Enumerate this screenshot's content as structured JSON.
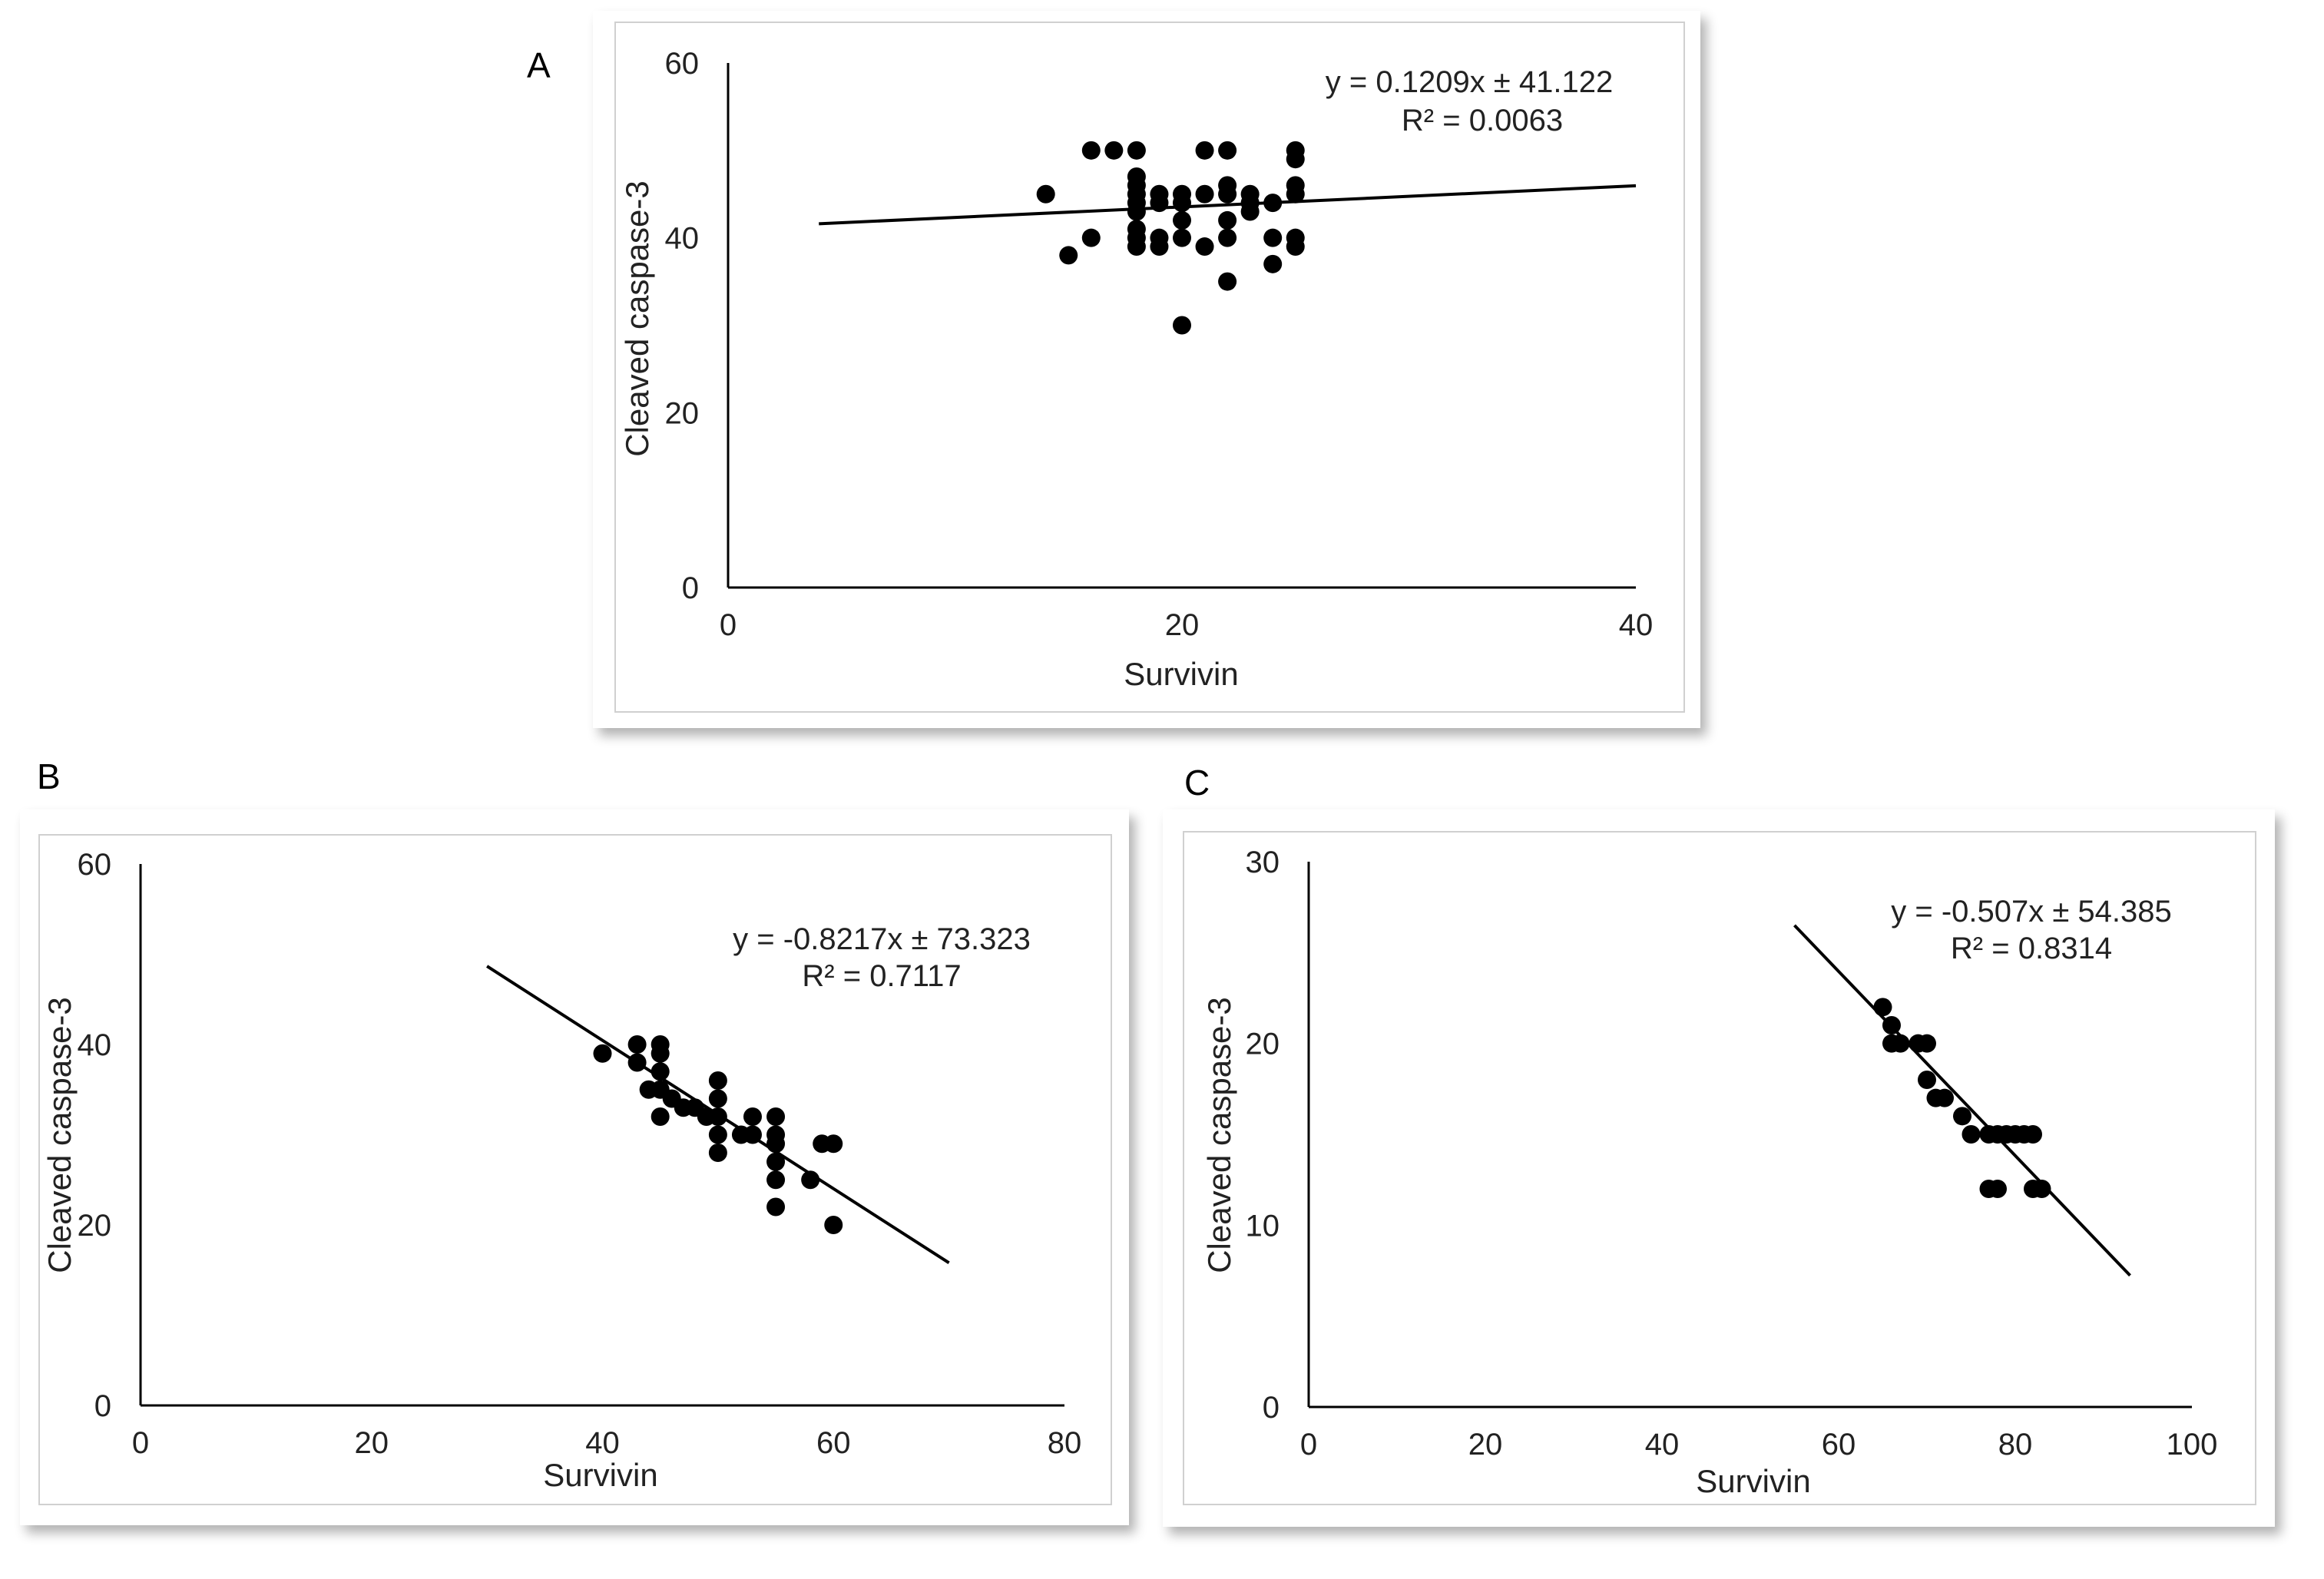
{
  "panel_labels": {
    "a": "A",
    "b": "B",
    "c": "C"
  },
  "colors": {
    "points": "#000000",
    "axis": "#000000",
    "trendline": "#000000",
    "text": "#222222"
  },
  "chart_data": [
    {
      "id": "A",
      "type": "scatter",
      "xlabel": "Survivin",
      "ylabel": "Cleaved caspase-3",
      "xlim": [
        0,
        40
      ],
      "ylim": [
        0,
        60
      ],
      "xticks": [
        "0",
        "20",
        "40"
      ],
      "yticks": [
        "0",
        "20",
        "40",
        "60"
      ],
      "equation": "y = 0.1209x ± 41.122",
      "r2": "R² = 0.0063",
      "trendline": {
        "slope": 0.1209,
        "intercept": 41.122,
        "x_range": [
          4,
          40
        ]
      },
      "points": [
        [
          14,
          45
        ],
        [
          15,
          38
        ],
        [
          16,
          40
        ],
        [
          16,
          50
        ],
        [
          17,
          50
        ],
        [
          18,
          50
        ],
        [
          18,
          47
        ],
        [
          18,
          46
        ],
        [
          18,
          45
        ],
        [
          18,
          44
        ],
        [
          18,
          43
        ],
        [
          18,
          41
        ],
        [
          18,
          40
        ],
        [
          18,
          39
        ],
        [
          19,
          45
        ],
        [
          19,
          44
        ],
        [
          19,
          40
        ],
        [
          19,
          39
        ],
        [
          20,
          45
        ],
        [
          20,
          44
        ],
        [
          20,
          42
        ],
        [
          20,
          40
        ],
        [
          20,
          30
        ],
        [
          21,
          50
        ],
        [
          21,
          45
        ],
        [
          21,
          39
        ],
        [
          22,
          50
        ],
        [
          22,
          46
        ],
        [
          22,
          45
        ],
        [
          22,
          42
        ],
        [
          22,
          40
        ],
        [
          22,
          35
        ],
        [
          23,
          45
        ],
        [
          23,
          44
        ],
        [
          23,
          43
        ],
        [
          24,
          44
        ],
        [
          24,
          40
        ],
        [
          24,
          37
        ],
        [
          25,
          50
        ],
        [
          25,
          49
        ],
        [
          25,
          46
        ],
        [
          25,
          45
        ],
        [
          25,
          40
        ],
        [
          25,
          39
        ]
      ]
    },
    {
      "id": "B",
      "type": "scatter",
      "xlabel": "Survivin",
      "ylabel": "Cleaved caspase-3",
      "xlim": [
        0,
        80
      ],
      "ylim": [
        0,
        60
      ],
      "xticks": [
        "0",
        "20",
        "40",
        "60",
        "80"
      ],
      "yticks": [
        "0",
        "20",
        "40",
        "60"
      ],
      "equation": "y = -0.8217x ± 73.323",
      "r2": "R² = 0.7117",
      "trendline": {
        "slope": -0.8217,
        "intercept": 73.323,
        "x_range": [
          30,
          70
        ]
      },
      "points": [
        [
          40,
          39
        ],
        [
          43,
          40
        ],
        [
          43,
          38
        ],
        [
          44,
          35
        ],
        [
          45,
          40
        ],
        [
          45,
          39
        ],
        [
          45,
          37
        ],
        [
          45,
          35
        ],
        [
          45,
          32
        ],
        [
          46,
          34
        ],
        [
          47,
          33
        ],
        [
          48,
          33
        ],
        [
          49,
          32
        ],
        [
          50,
          36
        ],
        [
          50,
          34
        ],
        [
          50,
          32
        ],
        [
          50,
          30
        ],
        [
          50,
          28
        ],
        [
          52,
          30
        ],
        [
          53,
          32
        ],
        [
          53,
          30
        ],
        [
          55,
          32
        ],
        [
          55,
          30
        ],
        [
          55,
          29
        ],
        [
          55,
          27
        ],
        [
          55,
          25
        ],
        [
          55,
          22
        ],
        [
          58,
          25
        ],
        [
          59,
          29
        ],
        [
          60,
          29
        ],
        [
          60,
          20
        ]
      ]
    },
    {
      "id": "C",
      "type": "scatter",
      "xlabel": "Survivin",
      "ylabel": "Cleaved caspase-3",
      "xlim": [
        0,
        100
      ],
      "ylim": [
        0,
        30
      ],
      "xticks": [
        "0",
        "20",
        "40",
        "60",
        "80",
        "100"
      ],
      "yticks": [
        "0",
        "10",
        "20",
        "30"
      ],
      "equation": "y = -0.507x ± 54.385",
      "r2": "R² = 0.8314",
      "trendline": {
        "slope": -0.507,
        "intercept": 54.385,
        "x_range": [
          55,
          93
        ]
      },
      "points": [
        [
          65,
          22
        ],
        [
          66,
          21
        ],
        [
          66,
          20
        ],
        [
          67,
          20
        ],
        [
          69,
          20
        ],
        [
          70,
          20
        ],
        [
          70,
          18
        ],
        [
          71,
          17
        ],
        [
          72,
          17
        ],
        [
          74,
          16
        ],
        [
          75,
          15
        ],
        [
          77,
          15
        ],
        [
          78,
          15
        ],
        [
          79,
          15
        ],
        [
          80,
          15
        ],
        [
          81,
          15
        ],
        [
          82,
          15
        ],
        [
          77,
          12
        ],
        [
          78,
          12
        ],
        [
          82,
          12
        ],
        [
          83,
          12
        ]
      ]
    }
  ]
}
